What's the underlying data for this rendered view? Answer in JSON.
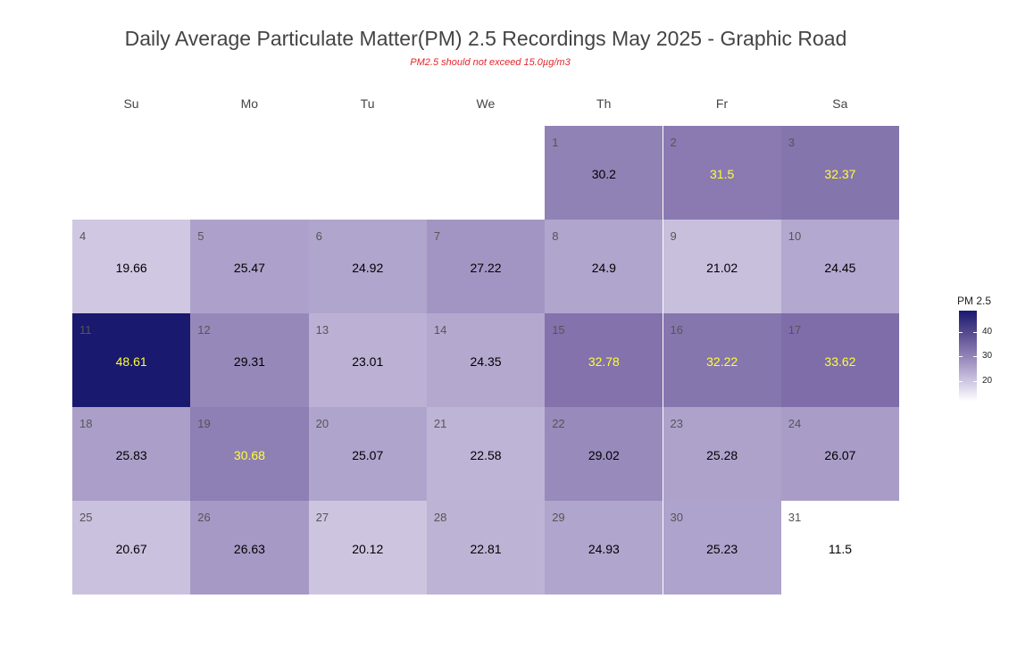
{
  "chart_data": {
    "type": "heatmap",
    "title": "Daily Average Particulate Matter(PM) 2.5 Recordings May 2025 -  Graphic Road",
    "subtitle": "PM2.5 should not exceed 15.0µg/m3",
    "weekdays": [
      "Su",
      "Mo",
      "Tu",
      "We",
      "Th",
      "Fr",
      "Sa"
    ],
    "first_weekday_index": 4,
    "days": [
      1,
      2,
      3,
      4,
      5,
      6,
      7,
      8,
      9,
      10,
      11,
      12,
      13,
      14,
      15,
      16,
      17,
      18,
      19,
      20,
      21,
      22,
      23,
      24,
      25,
      26,
      27,
      28,
      29,
      30,
      31
    ],
    "day_labels": [
      "1",
      "2",
      "3",
      "4",
      "5",
      "6",
      "7",
      "8",
      "9",
      "10",
      "11",
      "12",
      "13",
      "14",
      "15",
      "16",
      "17",
      "18",
      "19",
      "20",
      "21",
      "22",
      "23",
      "24",
      "25",
      "26",
      "27",
      "28",
      "29",
      "30",
      "31"
    ],
    "values": [
      30.2,
      31.5,
      32.37,
      19.66,
      25.47,
      24.92,
      27.22,
      24.9,
      21.02,
      24.45,
      48.61,
      29.31,
      23.01,
      24.35,
      32.78,
      32.22,
      33.62,
      25.83,
      30.68,
      25.07,
      22.58,
      29.02,
      25.28,
      26.07,
      20.67,
      26.63,
      20.12,
      22.81,
      24.93,
      25.23,
      11.5
    ],
    "value_labels": [
      "30.2",
      "31.5",
      "32.37",
      "19.66",
      "25.47",
      "24.92",
      "27.22",
      "24.9",
      "21.02",
      "24.45",
      "48.61",
      "29.31",
      "23.01",
      "24.35",
      "32.78",
      "32.22",
      "33.62",
      "25.83",
      "30.68",
      "25.07",
      "22.58",
      "29.02",
      "25.28",
      "26.07",
      "20.67",
      "26.63",
      "20.12",
      "22.81",
      "24.93",
      "25.23",
      "11.5"
    ],
    "legend": {
      "title": "PM 2.5",
      "ticks": [
        20,
        30,
        40
      ],
      "tick_labels": [
        "20",
        "30",
        "40"
      ],
      "range": [
        11.5,
        48.61
      ],
      "placement": "right"
    },
    "colors": {
      "low": "#ffffff",
      "high": "#191970",
      "title": "#444444",
      "subtitle": "#e3262b",
      "value_text_high": "#ffff33",
      "value_text_low": "#000000",
      "day_number": "#555555"
    },
    "high_text_threshold": 30.5
  }
}
